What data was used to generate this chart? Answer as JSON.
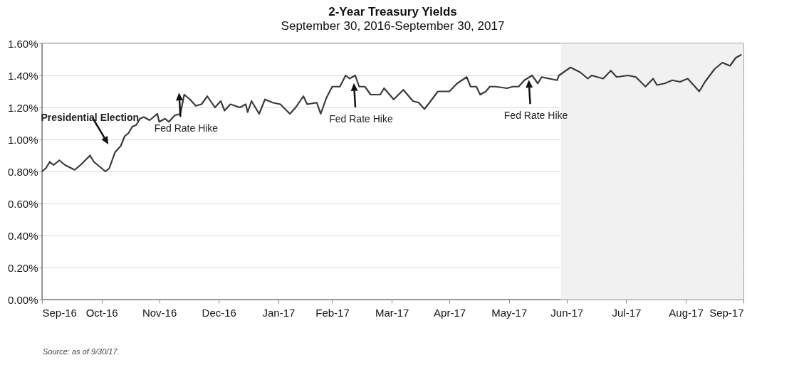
{
  "chart_data": {
    "type": "line",
    "title": "2-Year Treasury Yields",
    "subtitle": "September 30, 2016-September 30, 2017",
    "x": [
      "2016-09-30",
      "2016-10-02",
      "2016-10-04",
      "2016-10-06",
      "2016-10-09",
      "2016-10-12",
      "2016-10-17",
      "2016-10-20",
      "2016-10-25",
      "2016-10-27",
      "2016-11-02",
      "2016-11-04",
      "2016-11-07",
      "2016-11-10",
      "2016-11-12",
      "2016-11-14",
      "2016-11-16",
      "2016-11-18",
      "2016-11-20",
      "2016-11-22",
      "2016-11-25",
      "2016-11-29",
      "2016-11-30",
      "2016-12-03",
      "2016-12-05",
      "2016-12-08",
      "2016-12-11",
      "2016-12-13",
      "2016-12-16",
      "2016-12-19",
      "2016-12-22",
      "2016-12-25",
      "2016-12-29",
      "2017-01-01",
      "2017-01-03",
      "2017-01-06",
      "2017-01-11",
      "2017-01-14",
      "2017-01-15",
      "2017-01-17",
      "2017-01-21",
      "2017-01-24",
      "2017-01-28",
      "2017-02-01",
      "2017-02-06",
      "2017-02-09",
      "2017-02-13",
      "2017-02-15",
      "2017-02-20",
      "2017-02-22",
      "2017-02-25",
      "2017-02-28",
      "2017-03-04",
      "2017-03-07",
      "2017-03-09",
      "2017-03-12",
      "2017-03-14",
      "2017-03-17",
      "2017-03-20",
      "2017-03-25",
      "2017-03-27",
      "2017-04-01",
      "2017-04-06",
      "2017-04-11",
      "2017-04-14",
      "2017-04-17",
      "2017-04-19",
      "2017-04-24",
      "2017-04-30",
      "2017-05-04",
      "2017-05-09",
      "2017-05-11",
      "2017-05-14",
      "2017-05-16",
      "2017-05-19",
      "2017-05-21",
      "2017-05-24",
      "2017-05-30",
      "2017-06-02",
      "2017-06-05",
      "2017-06-08",
      "2017-06-12",
      "2017-06-15",
      "2017-06-17",
      "2017-06-25",
      "2017-06-26",
      "2017-07-02",
      "2017-07-07",
      "2017-07-11",
      "2017-07-13",
      "2017-07-19",
      "2017-07-23",
      "2017-07-26",
      "2017-08-01",
      "2017-08-05",
      "2017-08-10",
      "2017-08-14",
      "2017-08-16",
      "2017-08-20",
      "2017-08-24",
      "2017-08-28",
      "2017-09-01",
      "2017-09-07",
      "2017-09-10",
      "2017-09-15",
      "2017-09-19",
      "2017-09-23",
      "2017-09-26",
      "2017-09-29"
    ],
    "series": [
      {
        "color": "#3a3a3a",
        "values": [
          0.8,
          0.82,
          0.86,
          0.84,
          0.87,
          0.84,
          0.81,
          0.84,
          0.9,
          0.86,
          0.8,
          0.82,
          0.92,
          0.96,
          1.02,
          1.04,
          1.08,
          1.09,
          1.13,
          1.14,
          1.12,
          1.16,
          1.11,
          1.13,
          1.11,
          1.15,
          1.16,
          1.28,
          1.25,
          1.21,
          1.22,
          1.27,
          1.2,
          1.24,
          1.18,
          1.22,
          1.2,
          1.22,
          1.17,
          1.24,
          1.16,
          1.25,
          1.23,
          1.22,
          1.16,
          1.2,
          1.27,
          1.22,
          1.23,
          1.16,
          1.26,
          1.33,
          1.33,
          1.4,
          1.38,
          1.4,
          1.33,
          1.33,
          1.28,
          1.28,
          1.32,
          1.25,
          1.31,
          1.24,
          1.23,
          1.19,
          1.22,
          1.3,
          1.3,
          1.35,
          1.39,
          1.33,
          1.33,
          1.28,
          1.3,
          1.33,
          1.33,
          1.32,
          1.33,
          1.33,
          1.37,
          1.4,
          1.35,
          1.39,
          1.37,
          1.4,
          1.45,
          1.42,
          1.38,
          1.4,
          1.38,
          1.43,
          1.39,
          1.4,
          1.39,
          1.33,
          1.38,
          1.34,
          1.35,
          1.37,
          1.36,
          1.38,
          1.3,
          1.36,
          1.44,
          1.48,
          1.46,
          1.51,
          1.53
        ]
      }
    ],
    "xlim": [
      "2016-09-30",
      "2017-09-30"
    ],
    "xticks": [
      {
        "value": "2016-09-30",
        "label": "Sep-16"
      },
      {
        "value": "2016-10-31",
        "label": "Oct-16"
      },
      {
        "value": "2016-11-30",
        "label": "Nov-16"
      },
      {
        "value": "2016-12-31",
        "label": "Dec-16"
      },
      {
        "value": "2017-01-31",
        "label": "Jan-17"
      },
      {
        "value": "2017-02-28",
        "label": "Feb-17"
      },
      {
        "value": "2017-03-31",
        "label": "Mar-17"
      },
      {
        "value": "2017-04-30",
        "label": "Apr-17"
      },
      {
        "value": "2017-05-31",
        "label": "May-17"
      },
      {
        "value": "2017-06-30",
        "label": "Jun-17"
      },
      {
        "value": "2017-07-31",
        "label": "Jul-17"
      },
      {
        "value": "2017-08-31",
        "label": "Aug-17"
      },
      {
        "value": "2017-09-30",
        "label": "Sep-17"
      }
    ],
    "ylim": [
      0,
      1.6
    ],
    "yticks": [
      {
        "value": 0,
        "label": "0.00%"
      },
      {
        "value": 0.2,
        "label": "0.20%"
      },
      {
        "value": 0.4,
        "label": "0.40%"
      },
      {
        "value": 0.6,
        "label": "0.60%"
      },
      {
        "value": 0.8,
        "label": "0.80%"
      },
      {
        "value": 1.0,
        "label": "1.00%"
      },
      {
        "value": 1.2,
        "label": "1.20%"
      },
      {
        "value": 1.4,
        "label": "1.40%"
      },
      {
        "value": 1.6,
        "label": "1.60%"
      }
    ],
    "grid": "y",
    "bands": [
      {
        "axis": "x",
        "from": "2017-06-27",
        "to": "2017-09-30",
        "color": "#f1f1f1"
      }
    ],
    "annotations": [
      {
        "text": "Presidential Election",
        "x": "2016-11-08",
        "y": 0.92
      },
      {
        "text": "Fed Rate Hike",
        "x": "2016-12-14",
        "y": 1.27
      },
      {
        "text": "Fed Rate Hike",
        "x": "2017-03-15",
        "y": 1.33
      },
      {
        "text": "Fed Rate Hike",
        "x": "2017-06-14",
        "y": 1.35
      },
      "Source: as of 9/30/17."
    ]
  }
}
